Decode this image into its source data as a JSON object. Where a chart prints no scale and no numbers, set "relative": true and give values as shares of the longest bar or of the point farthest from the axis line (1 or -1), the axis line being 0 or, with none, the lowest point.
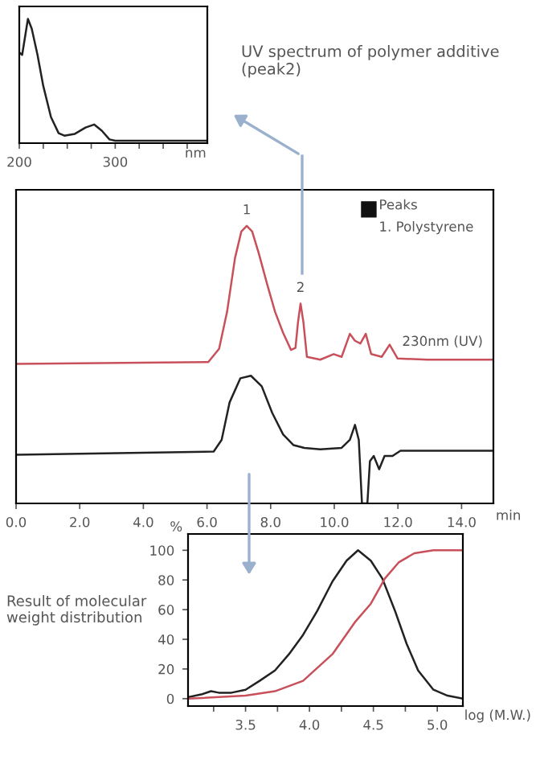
{
  "chart_data": [
    {
      "type": "line",
      "relative": true,
      "xlim": [
        200,
        396
      ],
      "xticks": [
        200,
        {
          "value": 225,
          "label": null
        },
        {
          "value": 250,
          "label": null
        },
        {
          "value": 275,
          "label": null
        },
        300,
        {
          "value": 325,
          "label": null
        },
        {
          "value": 350,
          "label": null
        },
        {
          "value": 375,
          "label": null
        }
      ],
      "xlabel": "nm",
      "tick_labels": "x",
      "annotations": [
        "UV spectrum of polymer additive (peak2)"
      ],
      "series": [
        {
          "color": "#222222",
          "x": [
            200,
            203,
            209,
            213,
            219,
            225,
            233,
            241,
            247,
            258,
            269,
            278,
            286,
            294,
            300,
            396
          ],
          "values": [
            0.73,
            0.71,
            1.0,
            0.92,
            0.71,
            0.46,
            0.21,
            0.08,
            0.06,
            0.075,
            0.125,
            0.15,
            0.1,
            0.03,
            0.02,
            0.02
          ]
        }
      ]
    },
    {
      "type": "line",
      "relative": true,
      "xlim": [
        0,
        15
      ],
      "xticks": [
        {
          "value": 0,
          "label": "0.0"
        },
        {
          "value": 2,
          "label": "2.0"
        },
        {
          "value": 4,
          "label": "4.0"
        },
        {
          "value": 6,
          "label": "6.0"
        },
        {
          "value": 8,
          "label": "8.0"
        },
        {
          "value": 10,
          "label": "10.0"
        },
        {
          "value": 12,
          "label": "12.0"
        },
        {
          "value": 14,
          "label": "14.0"
        }
      ],
      "xlabel": "min",
      "tick_labels": "x",
      "annotations": [
        {
          "text": "1",
          "x": 7.25,
          "y": 1.0
        },
        {
          "text": "2",
          "x": 8.94,
          "y": 0.72
        },
        "Peaks",
        "1. Polystyrene"
      ],
      "series": [
        {
          "name": "230nm (UV)",
          "color": "#c8505a",
          "x": [
            0,
            6.04,
            6.38,
            6.63,
            6.88,
            7.08,
            7.25,
            7.42,
            7.63,
            7.89,
            8.14,
            8.39,
            8.64,
            8.78,
            8.86,
            8.94,
            9.03,
            9.14,
            9.56,
            9.98,
            10.23,
            10.49,
            10.65,
            10.82,
            10.99,
            11.16,
            11.49,
            11.74,
            11.99,
            12.92,
            14.97
          ],
          "values": [
            0.503,
            0.509,
            0.557,
            0.69,
            0.884,
            0.98,
            1.0,
            0.98,
            0.9,
            0.79,
            0.69,
            0.615,
            0.553,
            0.56,
            0.653,
            0.72,
            0.653,
            0.528,
            0.518,
            0.538,
            0.528,
            0.611,
            0.586,
            0.576,
            0.611,
            0.538,
            0.528,
            0.572,
            0.522,
            0.518,
            0.518
          ]
        },
        {
          "color": "#222222",
          "x": [
            0,
            6.21,
            6.46,
            6.71,
            7.05,
            7.38,
            7.72,
            8.05,
            8.39,
            8.72,
            9.06,
            9.56,
            10.23,
            10.49,
            10.65,
            10.77,
            10.87,
            11.04,
            11.12,
            11.24,
            11.41,
            11.58,
            11.83,
            12.08,
            14.97
          ],
          "values": [
            0.175,
            0.187,
            0.229,
            0.364,
            0.451,
            0.46,
            0.422,
            0.326,
            0.249,
            0.21,
            0.2,
            0.195,
            0.2,
            0.229,
            0.283,
            0.229,
            0.0,
            0.0,
            0.152,
            0.171,
            0.123,
            0.171,
            0.171,
            0.19,
            0.19
          ]
        }
      ]
    },
    {
      "type": "line",
      "xlim": [
        3.05,
        5.2
      ],
      "ylim": [
        -5,
        111
      ],
      "xticks": [
        {
          "value": 3.25,
          "label": null
        },
        3.5,
        {
          "value": 3.75,
          "label": null
        },
        {
          "value": 4,
          "label": "4.0"
        },
        {
          "value": 4.25,
          "label": null
        },
        4.5,
        {
          "value": 4.75,
          "label": null
        },
        {
          "value": 5,
          "label": "5.0"
        }
      ],
      "yticks": [
        0,
        20,
        40,
        60,
        80,
        100
      ],
      "xlabel": "log (M.W.)",
      "ylabel": "%",
      "annotations": [
        "Result of molecular weight distribution"
      ],
      "series": [
        {
          "color": "#222222",
          "x": [
            3.05,
            3.16,
            3.23,
            3.29,
            3.39,
            3.5,
            3.61,
            3.73,
            3.84,
            3.95,
            4.06,
            4.18,
            4.29,
            4.38,
            4.48,
            4.57,
            4.67,
            4.76,
            4.85,
            4.97,
            5.08,
            5.2
          ],
          "values": [
            1,
            3,
            5,
            4,
            4,
            6,
            12,
            19,
            30,
            43,
            59,
            79,
            93,
            100,
            93,
            81,
            59,
            37,
            19,
            6,
            2,
            0
          ]
        },
        {
          "color": "#c8505a",
          "x": [
            3.05,
            3.5,
            3.73,
            3.95,
            4.18,
            4.36,
            4.48,
            4.59,
            4.7,
            4.82,
            4.97,
            5.2
          ],
          "values": [
            0,
            2,
            5,
            12,
            30,
            52,
            64,
            81,
            92,
            98,
            100,
            100
          ]
        }
      ]
    }
  ]
}
